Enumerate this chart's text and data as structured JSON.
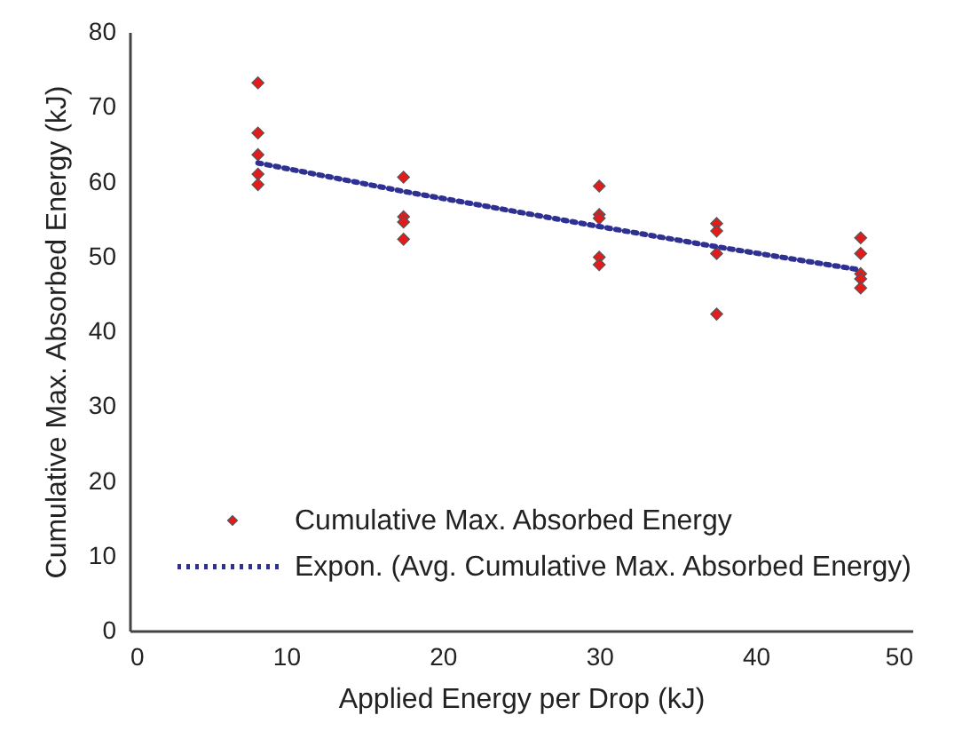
{
  "chart_data": {
    "type": "scatter",
    "xlabel": "Applied Energy per Drop (kJ)",
    "ylabel": "Cumulative Max. Absorbed Energy (kJ)",
    "xlim": [
      0,
      50
    ],
    "xticks": [
      0,
      10,
      20,
      30,
      40,
      50
    ],
    "ylim": [
      0,
      80
    ],
    "yticks": [
      0,
      10,
      20,
      30,
      40,
      50,
      60,
      70,
      80
    ],
    "grid": false,
    "legend": "bottom left",
    "series": [
      {
        "name": "Cumulative Max. Absorbed Energy",
        "type": "scatter",
        "marker": "diamond",
        "color": "#e31b1b",
        "x": [
          8.2,
          8.2,
          8.2,
          8.2,
          8.2,
          17.5,
          17.5,
          17.5,
          17.5,
          30,
          30,
          30,
          30,
          30,
          37.5,
          37.5,
          37.5,
          37.5,
          46.7,
          46.7,
          46.7,
          46.7,
          46.7
        ],
        "values": [
          73.2,
          66.5,
          63.6,
          61.0,
          59.6,
          60.6,
          55.3,
          54.6,
          52.3,
          59.4,
          55.6,
          55.1,
          49.9,
          48.9,
          54.4,
          53.4,
          50.4,
          42.3,
          52.5,
          50.4,
          47.7,
          47.0,
          45.8
        ]
      },
      {
        "name": "Expon. (Avg. Cumulative Max. Absorbed Energy)",
        "type": "line",
        "line_style": "dotted",
        "color": "#2e3192",
        "x": [
          8.2,
          17.5,
          30,
          37.5,
          46.7
        ],
        "values": [
          62.5,
          58.7,
          54.0,
          51.3,
          48.2
        ]
      }
    ]
  }
}
